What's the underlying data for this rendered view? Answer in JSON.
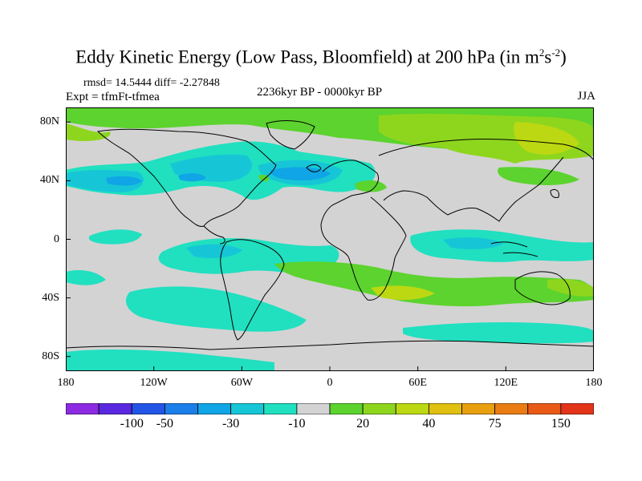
{
  "title": {
    "main": "Eddy Kinetic Energy (Low Pass, Bloomfield) at 200 hPa (in m",
    "sup1": "2",
    "mid": "s",
    "sup2": "-2",
    "close": ")"
  },
  "stats": "rmsd= 14.5444 diff= -2.27848",
  "expt": "Expt = tfmFt-tfmea",
  "period": "2236kyr BP - 0000kyr BP",
  "season": "JJA",
  "map": {
    "lat_ticks": [
      {
        "label": "80N",
        "lat": 80
      },
      {
        "label": "40N",
        "lat": 40
      },
      {
        "label": "0",
        "lat": 0
      },
      {
        "label": "40S",
        "lat": -40
      },
      {
        "label": "80S",
        "lat": -80
      }
    ],
    "lon_ticks": [
      {
        "label": "180",
        "lon": -180
      },
      {
        "label": "120W",
        "lon": -120
      },
      {
        "label": "60W",
        "lon": -60
      },
      {
        "label": "0",
        "lon": 0
      },
      {
        "label": "60E",
        "lon": 60
      },
      {
        "label": "120E",
        "lon": 120
      },
      {
        "label": "180",
        "lon": 180
      }
    ],
    "lat_range": [
      -90,
      90
    ],
    "lon_range": [
      -180,
      180
    ]
  },
  "colorbar": {
    "colors": [
      "#8c2be2",
      "#5a28e0",
      "#2255e6",
      "#1a7fe8",
      "#10a5e6",
      "#16c6d6",
      "#20e0c0",
      "#d3d3d3",
      "#5cd32e",
      "#8ed61e",
      "#bcd812",
      "#e0c010",
      "#e8a011",
      "#e97d14",
      "#ea5a17",
      "#e3341a"
    ],
    "labels": [
      {
        "text": "-100",
        "index": 2
      },
      {
        "text": "-50",
        "index": 3
      },
      {
        "text": "-30",
        "index": 5
      },
      {
        "text": "-10",
        "index": 7
      },
      {
        "text": "20",
        "index": 9
      },
      {
        "text": "40",
        "index": 11
      },
      {
        "text": "75",
        "index": 13
      },
      {
        "text": "150",
        "index": 15
      }
    ]
  }
}
